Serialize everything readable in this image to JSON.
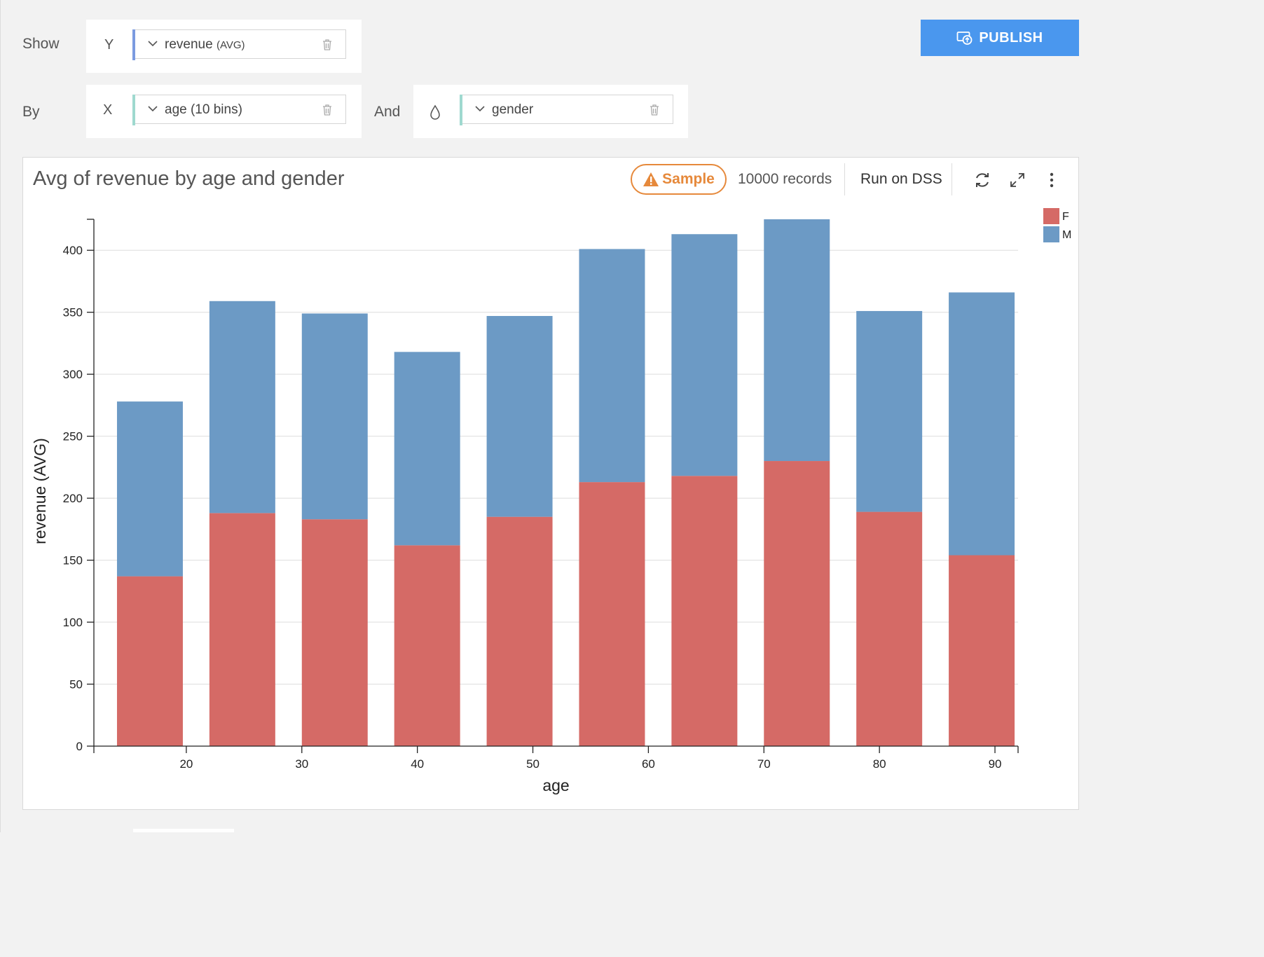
{
  "shelf": {
    "show_label": "Show",
    "by_label": "By",
    "and_label": "And",
    "y_axis": {
      "letter": "Y",
      "field": "revenue",
      "agg": "(AVG)",
      "accent": "#7b9be0"
    },
    "x_axis": {
      "letter": "X",
      "field": "age (10 bins)",
      "accent": "#9fd9cf"
    },
    "color_axis": {
      "icon": "droplet-icon",
      "field": "gender",
      "accent": "#9fd9cf"
    }
  },
  "publish_label": "PUBLISH",
  "chart_header": {
    "title": "Avg of revenue by age and gender",
    "sample_label": "Sample",
    "records": "10000 records",
    "run_on_dss": "Run on DSS"
  },
  "colors": {
    "F": "#d56a66",
    "M": "#6c9ac5",
    "publish": "#4a97ee",
    "warning": "#e6893b"
  },
  "chart_data": {
    "type": "bar",
    "stacked": true,
    "xlabel": "age",
    "ylabel": "revenue (AVG)",
    "ylim": [
      0,
      425
    ],
    "yticks": [
      0,
      50,
      100,
      150,
      200,
      250,
      300,
      350,
      400
    ],
    "xlim": [
      12,
      92
    ],
    "xticks": [
      20,
      30,
      40,
      50,
      60,
      70,
      80,
      90
    ],
    "bins": [
      [
        14,
        19.7
      ],
      [
        22,
        27.7
      ],
      [
        30,
        35.7
      ],
      [
        38,
        43.7
      ],
      [
        46,
        51.7
      ],
      [
        54,
        59.7
      ],
      [
        62,
        67.7
      ],
      [
        70,
        75.7
      ],
      [
        78,
        83.7
      ],
      [
        86,
        91.7
      ]
    ],
    "grid": true,
    "legend_position": "top-right",
    "series": [
      {
        "name": "F",
        "values": [
          137,
          188,
          183,
          162,
          185,
          213,
          218,
          230,
          189,
          154
        ]
      },
      {
        "name": "M",
        "values": [
          141,
          171,
          166,
          156,
          162,
          188,
          195,
          195,
          162,
          212
        ]
      }
    ]
  }
}
